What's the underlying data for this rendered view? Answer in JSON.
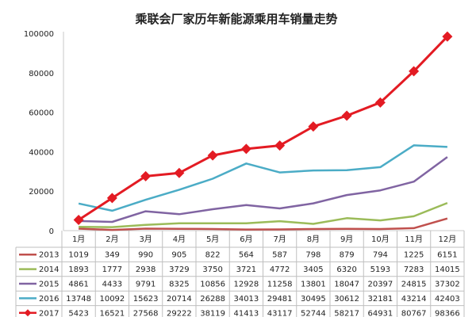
{
  "chart_data": {
    "type": "line",
    "title": "乘联会厂家历年新能源乘用车销量走势",
    "categories": [
      "1月",
      "2月",
      "3月",
      "4月",
      "5月",
      "6月",
      "7月",
      "8月",
      "9月",
      "10月",
      "11月",
      "12月"
    ],
    "ylim": [
      0,
      100000
    ],
    "yticks": [
      "0",
      "20000",
      "40000",
      "60000",
      "80000",
      "100000"
    ],
    "grid": false,
    "legend": "table-below",
    "series": [
      {
        "name": "2013",
        "color": "#c0504d",
        "values": [
          1019,
          349,
          990,
          905,
          822,
          564,
          587,
          798,
          879,
          794,
          1225,
          6151
        ],
        "labels": [
          "1019",
          "349",
          "990",
          "905",
          "822",
          "564",
          "587",
          "798",
          "879",
          "794",
          "1225",
          "6151"
        ]
      },
      {
        "name": "2014",
        "color": "#9bbb59",
        "values": [
          1893,
          1777,
          2938,
          3729,
          3750,
          3721,
          4772,
          3405,
          6320,
          5193,
          7283,
          14015
        ],
        "labels": [
          "1893",
          "1777",
          "2938",
          "3729",
          "3750",
          "3721",
          "4772",
          "3405",
          "6320",
          "5193",
          "7283",
          "14015"
        ]
      },
      {
        "name": "2015",
        "color": "#8064a2",
        "values": [
          4861,
          4433,
          9791,
          8325,
          10856,
          12928,
          11258,
          13801,
          18047,
          20397,
          24815,
          37302
        ],
        "labels": [
          "4861",
          "4433",
          "9791",
          "8325",
          "10856",
          "12928",
          "11258",
          "13801",
          "18047",
          "20397",
          "24815",
          "37302"
        ]
      },
      {
        "name": "2016",
        "color": "#4bacc6",
        "values": [
          13748,
          10092,
          15623,
          20714,
          26288,
          34013,
          29481,
          30495,
          30612,
          32181,
          43214,
          42403
        ],
        "labels": [
          "13748",
          "10092",
          "15623",
          "20714",
          "26288",
          "34013",
          "29481",
          "30495",
          "30612",
          "32181",
          "43214",
          "42403"
        ]
      },
      {
        "name": "2017",
        "color": "#e31b23",
        "marker": "diamond",
        "values": [
          5423,
          16521,
          27568,
          29222,
          38119,
          41413,
          43117,
          52744,
          58217,
          64931,
          80767,
          98366
        ],
        "labels": [
          "5423",
          "16521",
          "27568",
          "29222",
          "38119",
          "41413",
          "43117",
          "52744",
          "58217",
          "64931",
          "80767",
          "98366"
        ]
      }
    ]
  }
}
